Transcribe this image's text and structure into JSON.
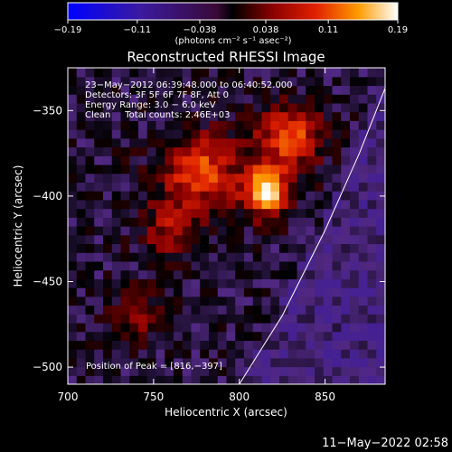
{
  "chart_data": {
    "type": "heatmap",
    "title": "Reconstructed RHESSI Image",
    "xlabel": "Heliocentric X (arcsec)",
    "ylabel": "Heliocentric Y (arcsec)",
    "xlim": [
      700,
      885
    ],
    "ylim": [
      -510,
      -325
    ],
    "x_ticks": [
      700,
      750,
      800,
      850
    ],
    "x_tick_labels": [
      "700",
      "750",
      "800",
      "850"
    ],
    "y_ticks": [
      -350,
      -400,
      -450,
      -500
    ],
    "y_tick_labels": [
      "−350",
      "−400",
      "−450",
      "−500"
    ],
    "colorbar": {
      "min": -0.19,
      "max": 0.19,
      "ticks": [
        -0.19,
        -0.11,
        -0.038,
        0.038,
        0.11,
        0.19
      ],
      "tick_labels": [
        "−0.19",
        "−0.11",
        "−0.038",
        "0.038",
        "0.11",
        "0.19"
      ],
      "unit_label": "(photons cm⁻² s⁻¹ asec⁻²)"
    },
    "annotations": [
      "23−May−2012 06:39:48.000 to 06:40:52.000",
      "Detectors: 3F 5F 6F 7F 8F, Att 0",
      "Energy Range: 3.0 − 6.0 keV",
      "Clean     Total counts: 2.46E+03"
    ],
    "peak_label": "Position of Peak = [816,−397]",
    "peak": {
      "x": 816,
      "y": -397,
      "value": 0.19
    },
    "secondary_sources": [
      {
        "x": 830,
        "y": -365,
        "value": 0.12
      },
      {
        "x": 775,
        "y": -385,
        "value": 0.1
      },
      {
        "x": 760,
        "y": -420,
        "value": 0.07
      },
      {
        "x": 740,
        "y": -470,
        "value": 0.05
      }
    ],
    "limb_line": [
      [
        800,
        -510
      ],
      [
        825,
        -470
      ],
      [
        850,
        -420
      ],
      [
        870,
        -375
      ],
      [
        885,
        -337
      ]
    ],
    "timestamp": "11−May−2022 02:58"
  }
}
